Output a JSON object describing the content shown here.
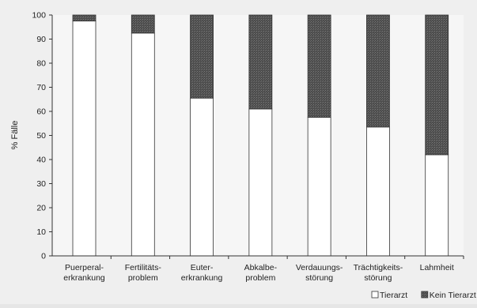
{
  "chart_data": {
    "type": "bar",
    "stacked": true,
    "percent": true,
    "ylabel": "% Fälle",
    "xlabel": "",
    "ylim": [
      0,
      100
    ],
    "yticks": [
      0,
      10,
      20,
      30,
      40,
      50,
      60,
      70,
      80,
      90,
      100
    ],
    "grid": false,
    "legend_position": "bottom-right",
    "categories": [
      [
        "Puerperal-",
        "erkrankung"
      ],
      [
        "Fertilitäts-",
        "problem"
      ],
      [
        "Euter-",
        "erkrankung"
      ],
      [
        "Abkalbe-",
        "problem"
      ],
      [
        "Verdauungs-",
        "störung"
      ],
      [
        "Trächtigkeits-",
        "störung"
      ],
      [
        "Lahmheit"
      ]
    ],
    "series": [
      {
        "name": "Tierarzt",
        "color": "#ffffff",
        "values": [
          97.5,
          92.5,
          65.5,
          61,
          57.5,
          53.5,
          42
        ]
      },
      {
        "name": "Kein Tierarzt",
        "color": "#555555",
        "values": [
          2.5,
          7.5,
          34.5,
          39,
          42.5,
          46.5,
          58
        ]
      }
    ]
  }
}
